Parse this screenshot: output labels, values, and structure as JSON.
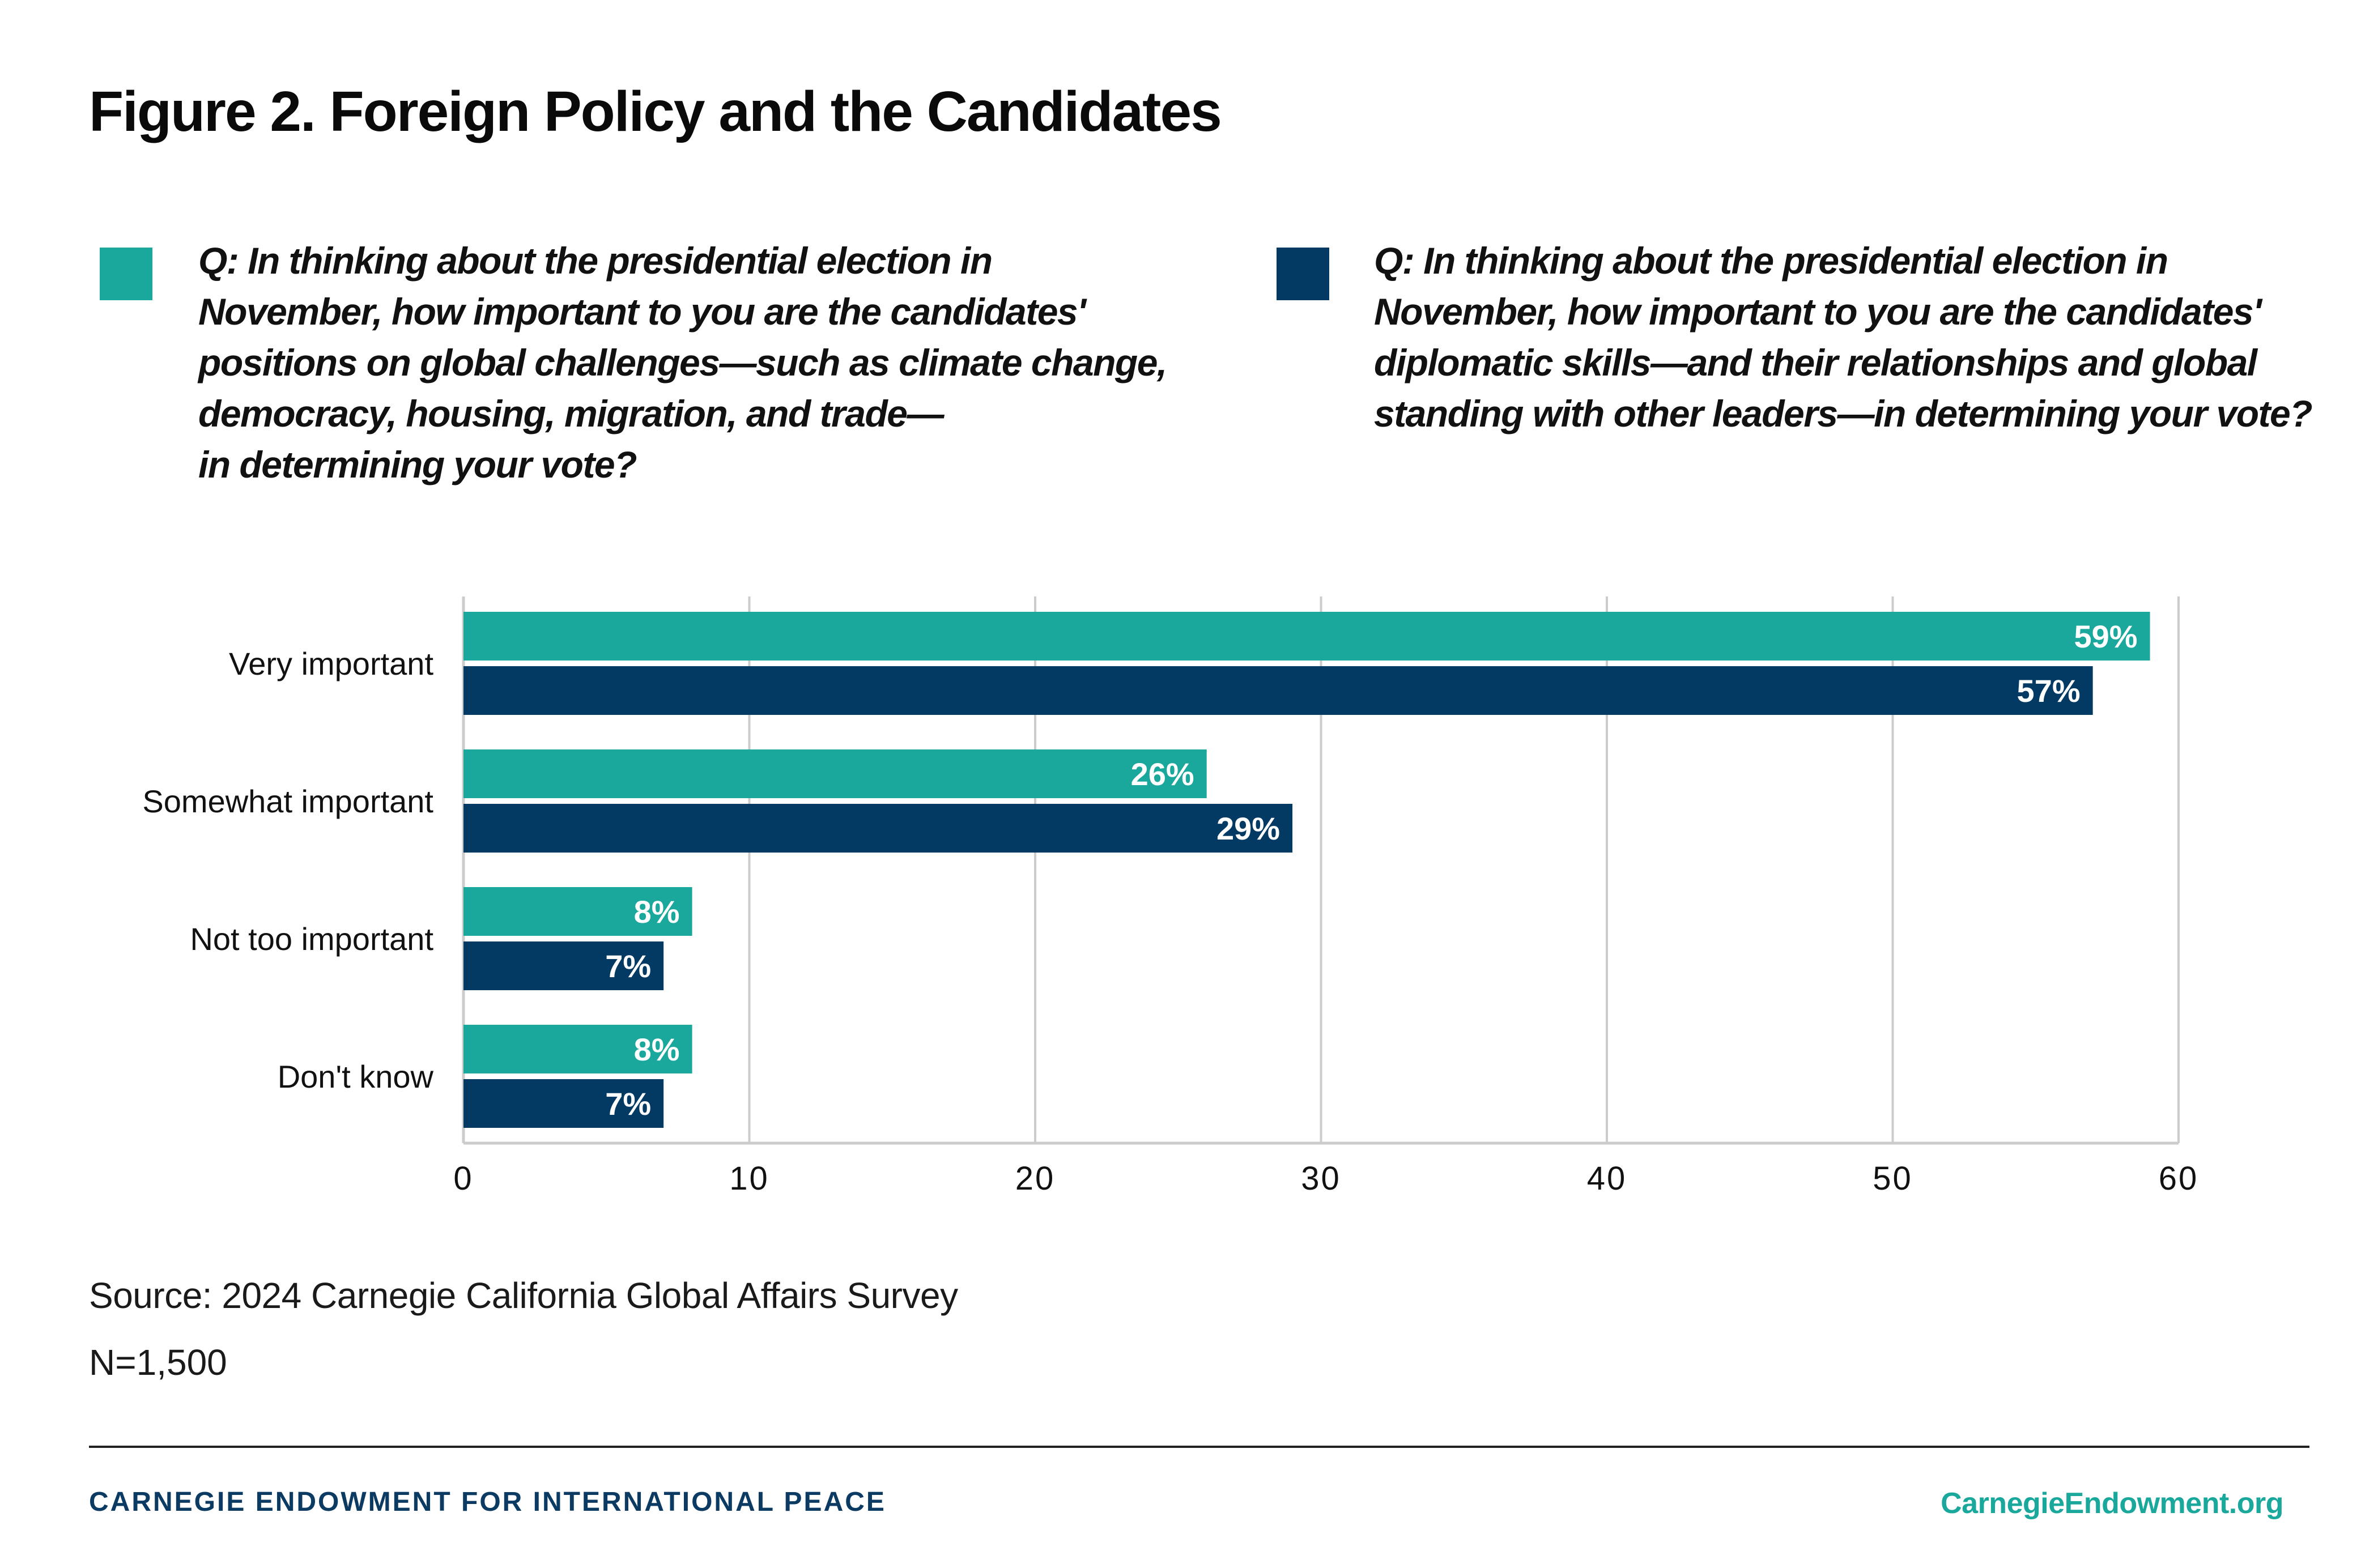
{
  "title": "Figure 2. Foreign Policy and the Candidates",
  "colors": {
    "series_a": "#1aa89c",
    "series_b": "#033a63",
    "grid": "#cccccc",
    "org_text": "#0b3a63",
    "url_text": "#1aa89c"
  },
  "legend": [
    {
      "name": "global-challenges",
      "lines": [
        "Q: In thinking about the presidential election in",
        "November, how important to you are the candidates'",
        "positions on global challenges—such as climate change,",
        "democracy, housing, migration, and trade—",
        "in determining your vote?"
      ]
    },
    {
      "name": "diplomatic-skills",
      "lines": [
        "Q: In thinking about the presidential election in",
        "November, how important to you are the candidates'",
        "diplomatic skills—and their relationships and global",
        "standing with other leaders—in determining your vote?"
      ]
    }
  ],
  "chart_data": {
    "type": "bar",
    "orientation": "horizontal",
    "title": "Figure 2. Foreign Policy and the Candidates",
    "categories": [
      "Very important",
      "Somewhat important",
      "Not too important",
      "Don't know"
    ],
    "series": [
      {
        "name": "Q: In thinking about the presidential election in November, how important to you are the candidates' positions on global challenges—such as climate change, democracy, housing, migration, and trade—in determining your vote?",
        "color": "#1aa89c",
        "values": [
          59,
          26,
          8,
          8
        ],
        "labels": [
          "59%",
          "26%",
          "8%",
          "8%"
        ]
      },
      {
        "name": "Q: In thinking about the presidential election in November, how important to you are the candidates' diplomatic skills—and their relationships and global standing with other leaders—in determining your vote?",
        "color": "#033a63",
        "values": [
          57,
          29,
          7,
          7
        ],
        "labels": [
          "57%",
          "29%",
          "7%",
          "7%"
        ]
      }
    ],
    "xlabel": "",
    "ylabel": "",
    "xlim": [
      0,
      60
    ],
    "xticks": [
      0,
      10,
      20,
      30,
      40,
      50,
      60
    ],
    "xtick_labels": [
      "0",
      "10",
      "20",
      "30",
      "40",
      "50",
      "60"
    ],
    "grid": "vertical",
    "legend_placement": "top"
  },
  "footer": {
    "source": "Source: 2024 Carnegie California Global Affairs Survey",
    "n": "N=1,500",
    "org": "CARNEGIE ENDOWMENT FOR INTERNATIONAL PEACE",
    "url": "CarnegieEndowment.org"
  }
}
